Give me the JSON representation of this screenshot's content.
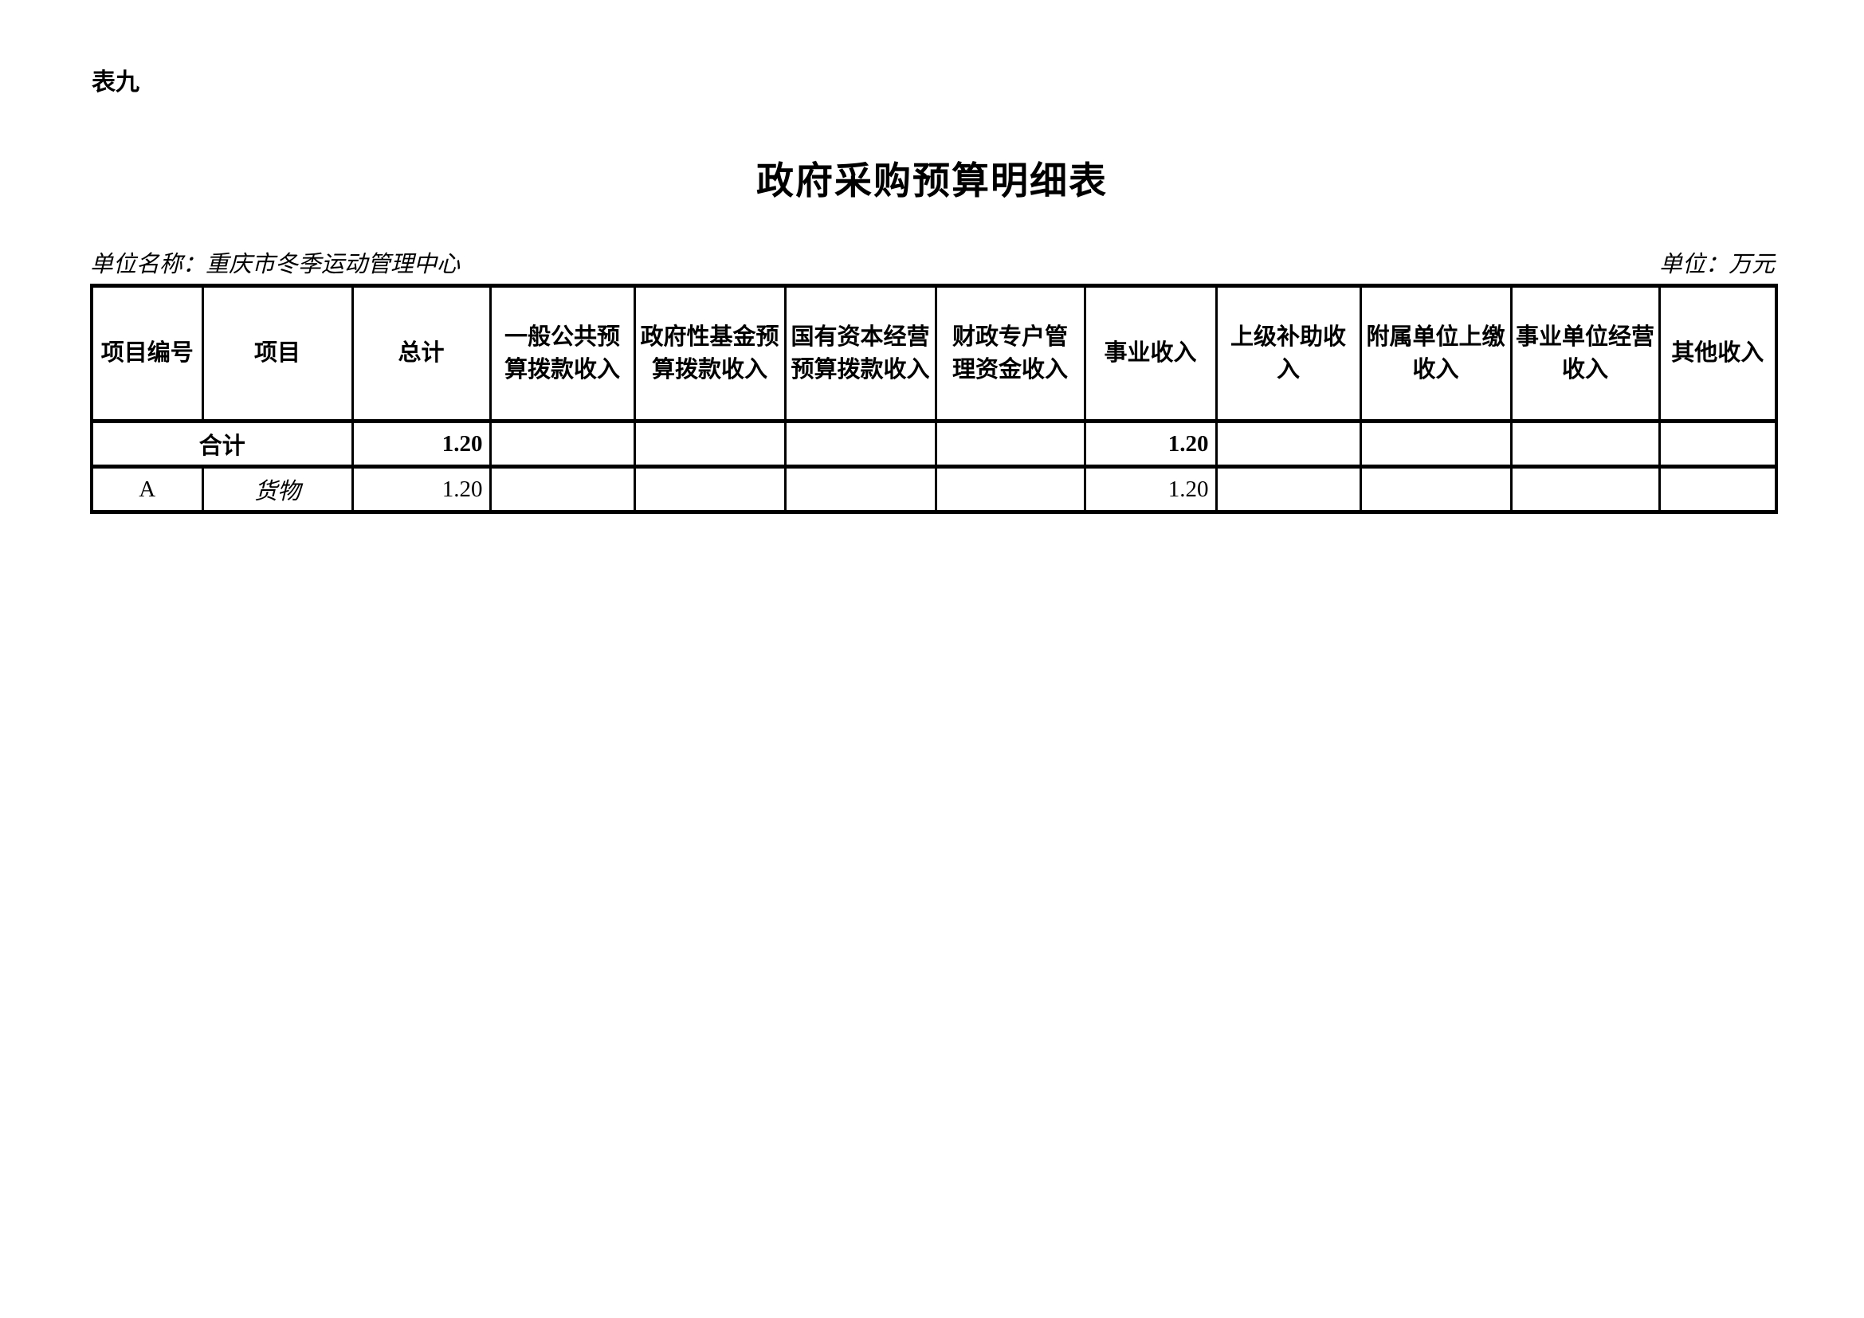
{
  "page": {
    "table_tag": "表九",
    "title": "政府采购预算明细表",
    "unit_name": "单位名称：重庆市冬季运动管理中心",
    "unit": "单位：万元"
  },
  "table": {
    "columns": [
      "项目编号",
      "项目",
      "总计",
      "一般公共预\n算拨款收入",
      "政府性基金预\n算拨款收入",
      "国有资本经营\n预算拨款收入",
      "财政专户管\n理资金收入",
      "事业收入",
      "上级补助收\n入",
      "附属单位上缴\n收入",
      "事业单位经营\n收入",
      "其他收入"
    ],
    "total_row": {
      "label": "合计",
      "total": "1.20",
      "general_public_budget": "",
      "govt_fund_budget": "",
      "state_capital_budget": "",
      "fiscal_special_account": "",
      "business_income": "1.20",
      "superior_subsidy": "",
      "affiliated_unit_remit": "",
      "business_unit_operating": "",
      "other_income": ""
    },
    "rows": [
      {
        "code": "A",
        "item": "货物",
        "total": "1.20",
        "general_public_budget": "",
        "govt_fund_budget": "",
        "state_capital_budget": "",
        "fiscal_special_account": "",
        "business_income": "1.20",
        "superior_subsidy": "",
        "affiliated_unit_remit": "",
        "business_unit_operating": "",
        "other_income": ""
      }
    ]
  }
}
